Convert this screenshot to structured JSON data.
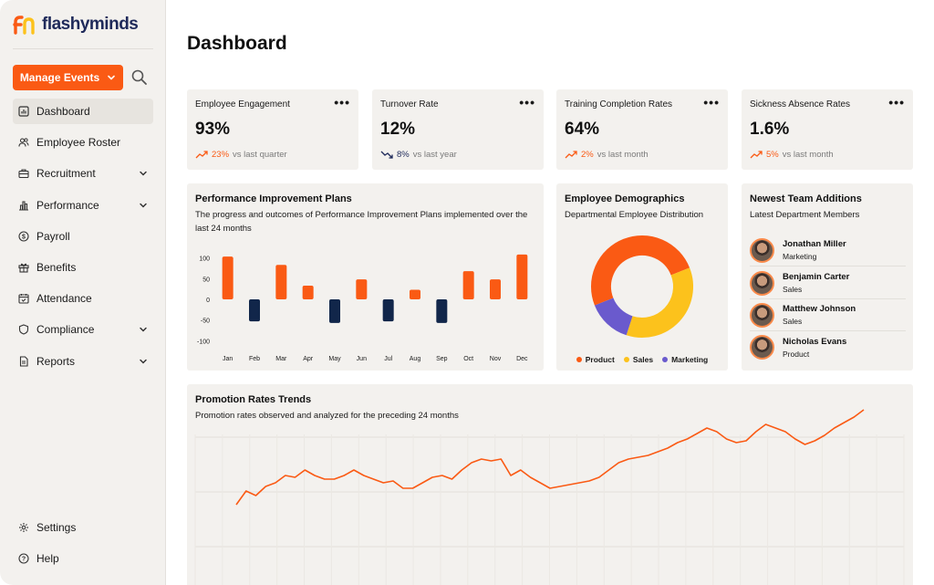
{
  "brand": {
    "name": "flashyminds",
    "accent": "#fa5a14",
    "navy": "#1f2a5a"
  },
  "sidebar": {
    "manage_button": "Manage Events",
    "nav": [
      {
        "label": "Dashboard",
        "icon": "dashboard-icon",
        "active": true,
        "expandable": false
      },
      {
        "label": "Employee Roster",
        "icon": "users-icon",
        "active": false,
        "expandable": false
      },
      {
        "label": "Recruitment",
        "icon": "briefcase-icon",
        "active": false,
        "expandable": true
      },
      {
        "label": "Performance",
        "icon": "bar-chart-icon",
        "active": false,
        "expandable": true
      },
      {
        "label": "Payroll",
        "icon": "dollar-icon",
        "active": false,
        "expandable": false
      },
      {
        "label": "Benefits",
        "icon": "gift-icon",
        "active": false,
        "expandable": false
      },
      {
        "label": "Attendance",
        "icon": "calendar-check-icon",
        "active": false,
        "expandable": false
      },
      {
        "label": "Compliance",
        "icon": "shield-icon",
        "active": false,
        "expandable": true
      },
      {
        "label": "Reports",
        "icon": "file-icon",
        "active": false,
        "expandable": true
      }
    ],
    "bottom": [
      {
        "label": "Settings",
        "icon": "gear-icon"
      },
      {
        "label": "Help",
        "icon": "help-icon"
      }
    ]
  },
  "page": {
    "title": "Dashboard"
  },
  "kpis": [
    {
      "title": "Employee Engagement",
      "value": "93%",
      "change": "23%",
      "compare": "vs last quarter",
      "direction": "up"
    },
    {
      "title": "Turnover Rate",
      "value": "12%",
      "change": "8%",
      "compare": "vs last year",
      "direction": "down"
    },
    {
      "title": "Training Completion Rates",
      "value": "64%",
      "change": "2%",
      "compare": "vs last month",
      "direction": "up"
    },
    {
      "title": "Sickness Absence Rates",
      "value": "1.6%",
      "change": "5%",
      "compare": "vs last month",
      "direction": "up"
    }
  ],
  "pip": {
    "title": "Performance Improvement Plans",
    "subtitle": "The progress and outcomes of Performance Improvement Plans implemented over the last 24 months"
  },
  "demographics": {
    "title": "Employee Demographics",
    "subtitle": "Departmental Employee Distribution"
  },
  "newest": {
    "title": "Newest Team Additions",
    "subtitle": "Latest Department Members",
    "members": [
      {
        "name": "Jonathan Miller",
        "dept": "Marketing"
      },
      {
        "name": "Benjamin Carter",
        "dept": "Sales"
      },
      {
        "name": "Matthew Johnson",
        "dept": "Sales"
      },
      {
        "name": "Nicholas Evans",
        "dept": "Product"
      }
    ]
  },
  "promotion": {
    "title": "Promotion Rates Trends",
    "subtitle": "Promotion rates observed and analyzed for the preceding 24 months"
  },
  "chart_data": [
    {
      "type": "bar",
      "categories": [
        "Jan",
        "Feb",
        "Mar",
        "Apr",
        "May",
        "Jun",
        "Jul",
        "Aug",
        "Sep",
        "Oct",
        "Nov",
        "Dec"
      ],
      "values": [
        103,
        -53,
        83,
        33,
        -57,
        48,
        -53,
        23,
        -57,
        68,
        48,
        108
      ],
      "colors": [
        "#fa5a14",
        "#11264a",
        "#fa5a14",
        "#fa5a14",
        "#11264a",
        "#fa5a14",
        "#11264a",
        "#fa5a14",
        "#11264a",
        "#fa5a14",
        "#fa5a14",
        "#fa5a14"
      ],
      "yticks": [
        "100",
        "50",
        "0",
        "-50",
        "-100"
      ],
      "ylim": [
        -110,
        110
      ],
      "grid": false
    },
    {
      "type": "pie",
      "labels": [
        "Product",
        "Sales",
        "Marketing"
      ],
      "values": [
        50,
        36,
        14
      ],
      "colors": [
        "#fa5a14",
        "#fcc21c",
        "#6a5acd"
      ],
      "donut": true
    },
    {
      "type": "line",
      "values": [
        20,
        35,
        30,
        40,
        44,
        52,
        50,
        58,
        52,
        48,
        48,
        52,
        58,
        52,
        48,
        44,
        46,
        38,
        38,
        44,
        50,
        52,
        48,
        58,
        66,
        70,
        68,
        70,
        52,
        58,
        50,
        44,
        38,
        40,
        42,
        44,
        46,
        50,
        58,
        66,
        70,
        72,
        74,
        78,
        82,
        88,
        92,
        98,
        104,
        100,
        92,
        88,
        90,
        100,
        108,
        104,
        100,
        92,
        86,
        90,
        96,
        104,
        110,
        116,
        124
      ],
      "color": "#fa5a14",
      "grid": true
    }
  ]
}
